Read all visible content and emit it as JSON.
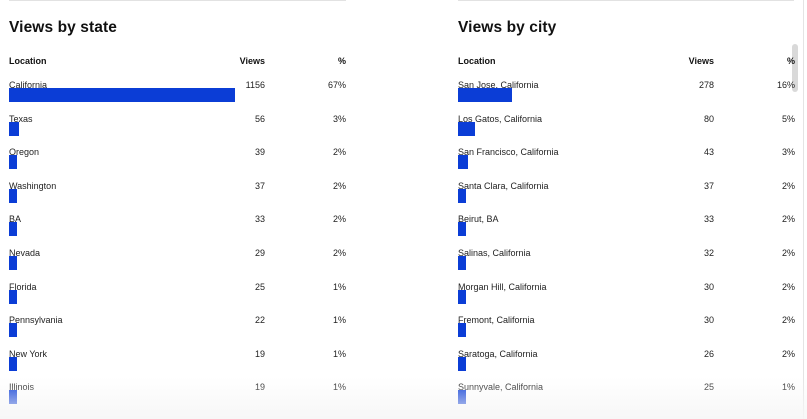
{
  "colors": {
    "bar": "#0b3dd6"
  },
  "state_panel": {
    "title": "Views by state",
    "headers": {
      "location": "Location",
      "views": "Views",
      "percent": "%"
    },
    "rows": [
      {
        "name": "California",
        "views": "1156",
        "percent": "67%",
        "share": 0.67
      },
      {
        "name": "Texas",
        "views": "56",
        "percent": "3%",
        "share": 0.03
      },
      {
        "name": "Oregon",
        "views": "39",
        "percent": "2%",
        "share": 0.02
      },
      {
        "name": "Washington",
        "views": "37",
        "percent": "2%",
        "share": 0.02
      },
      {
        "name": "BA",
        "views": "33",
        "percent": "2%",
        "share": 0.02
      },
      {
        "name": "Nevada",
        "views": "29",
        "percent": "2%",
        "share": 0.02
      },
      {
        "name": "Florida",
        "views": "25",
        "percent": "1%",
        "share": 0.01
      },
      {
        "name": "Pennsylvania",
        "views": "22",
        "percent": "1%",
        "share": 0.01
      },
      {
        "name": "New York",
        "views": "19",
        "percent": "1%",
        "share": 0.01
      },
      {
        "name": "Illinois",
        "views": "19",
        "percent": "1%",
        "share": 0.01
      }
    ]
  },
  "city_panel": {
    "title": "Views by city",
    "headers": {
      "location": "Location",
      "views": "Views",
      "percent": "%"
    },
    "rows": [
      {
        "name": "San Jose, California",
        "views": "278",
        "percent": "16%",
        "share": 0.16
      },
      {
        "name": "Los Gatos, California",
        "views": "80",
        "percent": "5%",
        "share": 0.05
      },
      {
        "name": "San Francisco, California",
        "views": "43",
        "percent": "3%",
        "share": 0.03
      },
      {
        "name": "Santa Clara, California",
        "views": "37",
        "percent": "2%",
        "share": 0.02
      },
      {
        "name": "Beirut, BA",
        "views": "33",
        "percent": "2%",
        "share": 0.02
      },
      {
        "name": "Salinas, California",
        "views": "32",
        "percent": "2%",
        "share": 0.02
      },
      {
        "name": "Morgan Hill, California",
        "views": "30",
        "percent": "2%",
        "share": 0.02
      },
      {
        "name": "Fremont, California",
        "views": "30",
        "percent": "2%",
        "share": 0.02
      },
      {
        "name": "Saratoga, California",
        "views": "26",
        "percent": "2%",
        "share": 0.02
      },
      {
        "name": "Sunnyvale, California",
        "views": "25",
        "percent": "1%",
        "share": 0.01
      }
    ]
  }
}
